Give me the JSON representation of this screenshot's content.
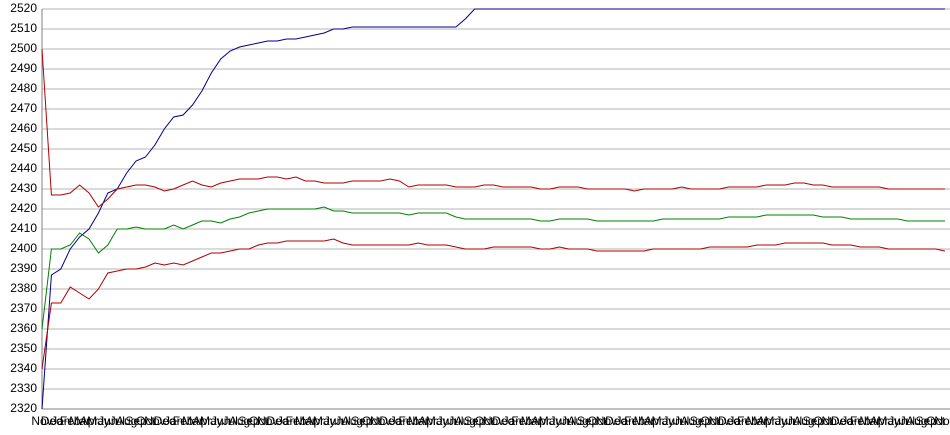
{
  "chart_data": {
    "type": "line",
    "categories": [
      "Nov",
      "Dec",
      "Jan",
      "Feb",
      "Mar",
      "Apr",
      "May",
      "Jun",
      "Jul",
      "Aug",
      "Sep",
      "Oct",
      "Nov",
      "Dec",
      "Jan",
      "Feb",
      "Mar",
      "Apr",
      "May",
      "Jun",
      "Jul",
      "Aug",
      "Sep",
      "Oct",
      "Nov",
      "Dec",
      "Jan",
      "Feb",
      "Mar",
      "Apr",
      "May",
      "Jun",
      "Jul",
      "Aug",
      "Sep",
      "Oct",
      "Nov",
      "Dec",
      "Jan",
      "Feb",
      "Mar",
      "Apr",
      "May",
      "Jun",
      "Jul",
      "Aug",
      "Sep",
      "Oct",
      "Nov",
      "Dec",
      "Jan",
      "Feb",
      "Mar",
      "Apr",
      "May",
      "Jun",
      "Jul",
      "Aug",
      "Sep",
      "Oct",
      "Nov",
      "Dec",
      "Jan",
      "Feb",
      "Mar",
      "Apr",
      "May",
      "Jun",
      "Jul",
      "Aug",
      "Sep",
      "Oct",
      "Nov",
      "Dec",
      "Jan",
      "Feb",
      "Mar",
      "Apr",
      "May",
      "Jun",
      "Jul",
      "Aug",
      "Sep",
      "Oct",
      "Nov",
      "Dec",
      "Jan",
      "Feb",
      "Mar",
      "Apr",
      "May",
      "Jun",
      "Jul",
      "Aug",
      "Sep",
      "Oct",
      "Nov"
    ],
    "series": [
      {
        "color": "#00008b",
        "values": [
          2320,
          2387,
          2390,
          2400,
          2406,
          2410,
          2418,
          2428,
          2430,
          2438,
          2444,
          2446,
          2452,
          2460,
          2466,
          2467,
          2472,
          2479,
          2488,
          2495,
          2499,
          2501,
          2502,
          2503,
          2504,
          2504,
          2505,
          2505,
          2506,
          2507,
          2508,
          2510,
          2510,
          2511,
          2511,
          2511,
          2511,
          2511,
          2511,
          2511,
          2511,
          2511,
          2511,
          2511,
          2511,
          2515,
          2520,
          2520,
          2520,
          2520,
          2520,
          2520,
          2520,
          2520,
          2520,
          2520,
          2520,
          2520,
          2520,
          2520,
          2520,
          2520,
          2520,
          2520,
          2520,
          2520,
          2520,
          2520,
          2520,
          2520,
          2520,
          2520,
          2520,
          2520,
          2520,
          2520,
          2520,
          2520,
          2520,
          2520,
          2520,
          2520,
          2520,
          2520,
          2520,
          2520,
          2520,
          2520,
          2520,
          2520,
          2520,
          2520,
          2520,
          2520,
          2520,
          2520,
          2520
        ]
      },
      {
        "color": "#b00000",
        "values": [
          2500,
          2427,
          2427,
          2428,
          2432,
          2428,
          2421,
          2425,
          2430,
          2431,
          2432,
          2432,
          2431,
          2429,
          2430,
          2432,
          2434,
          2432,
          2431,
          2433,
          2434,
          2435,
          2435,
          2435,
          2436,
          2436,
          2435,
          2436,
          2434,
          2434,
          2433,
          2433,
          2433,
          2434,
          2434,
          2434,
          2434,
          2435,
          2434,
          2431,
          2432,
          2432,
          2432,
          2432,
          2431,
          2431,
          2431,
          2432,
          2432,
          2431,
          2431,
          2431,
          2431,
          2430,
          2430,
          2431,
          2431,
          2431,
          2430,
          2430,
          2430,
          2430,
          2430,
          2429,
          2430,
          2430,
          2430,
          2430,
          2431,
          2430,
          2430,
          2430,
          2430,
          2431,
          2431,
          2431,
          2431,
          2432,
          2432,
          2432,
          2433,
          2433,
          2432,
          2432,
          2431,
          2431,
          2431,
          2431,
          2431,
          2431,
          2430,
          2430,
          2430,
          2430,
          2430,
          2430,
          2430
        ]
      },
      {
        "color": "#008000",
        "values": [
          2360,
          2400,
          2400,
          2402,
          2408,
          2405,
          2398,
          2402,
          2410,
          2410,
          2411,
          2410,
          2410,
          2410,
          2412,
          2410,
          2412,
          2414,
          2414,
          2413,
          2415,
          2416,
          2418,
          2419,
          2420,
          2420,
          2420,
          2420,
          2420,
          2420,
          2421,
          2419,
          2419,
          2418,
          2418,
          2418,
          2418,
          2418,
          2418,
          2417,
          2418,
          2418,
          2418,
          2418,
          2416,
          2415,
          2415,
          2415,
          2415,
          2415,
          2415,
          2415,
          2415,
          2414,
          2414,
          2415,
          2415,
          2415,
          2415,
          2414,
          2414,
          2414,
          2414,
          2414,
          2414,
          2414,
          2415,
          2415,
          2415,
          2415,
          2415,
          2415,
          2415,
          2416,
          2416,
          2416,
          2416,
          2417,
          2417,
          2417,
          2417,
          2417,
          2417,
          2416,
          2416,
          2416,
          2415,
          2415,
          2415,
          2415,
          2415,
          2415,
          2414,
          2414,
          2414,
          2414,
          2414
        ]
      },
      {
        "color": "#b00000",
        "values": [
          2340,
          2373,
          2373,
          2381,
          2378,
          2375,
          2380,
          2388,
          2389,
          2390,
          2390,
          2391,
          2393,
          2392,
          2393,
          2392,
          2394,
          2396,
          2398,
          2398,
          2399,
          2400,
          2400,
          2402,
          2403,
          2403,
          2404,
          2404,
          2404,
          2404,
          2404,
          2405,
          2403,
          2402,
          2402,
          2402,
          2402,
          2402,
          2402,
          2402,
          2403,
          2402,
          2402,
          2402,
          2401,
          2400,
          2400,
          2400,
          2401,
          2401,
          2401,
          2401,
          2401,
          2400,
          2400,
          2401,
          2400,
          2400,
          2400,
          2399,
          2399,
          2399,
          2399,
          2399,
          2399,
          2400,
          2400,
          2400,
          2400,
          2400,
          2400,
          2401,
          2401,
          2401,
          2401,
          2401,
          2402,
          2402,
          2402,
          2403,
          2403,
          2403,
          2403,
          2403,
          2402,
          2402,
          2402,
          2401,
          2401,
          2401,
          2400,
          2400,
          2400,
          2400,
          2400,
          2400,
          2399
        ]
      }
    ],
    "ylim": [
      2320,
      2520
    ],
    "yticks": [
      2320,
      2330,
      2340,
      2350,
      2360,
      2370,
      2380,
      2390,
      2400,
      2410,
      2420,
      2430,
      2440,
      2450,
      2460,
      2470,
      2480,
      2490,
      2500,
      2510,
      2520
    ],
    "grid": true
  }
}
